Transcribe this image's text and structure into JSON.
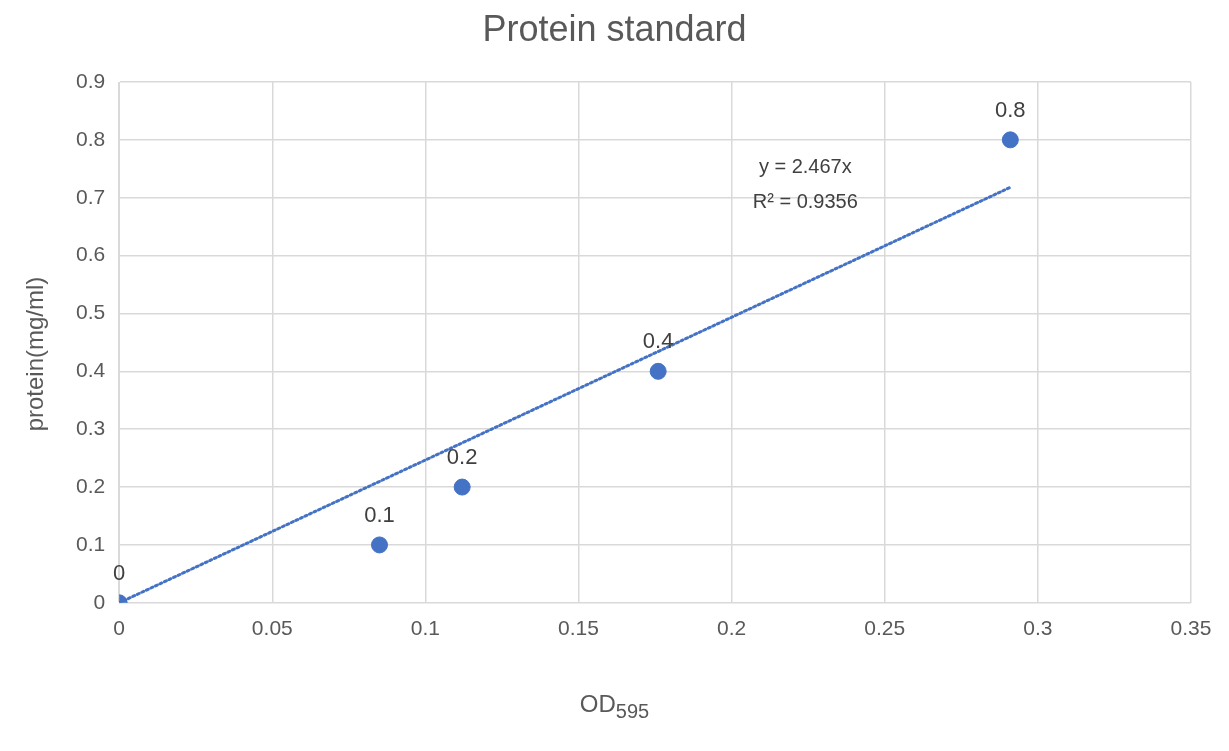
{
  "chart_data": {
    "type": "scatter",
    "title": "Protein standard",
    "xlabel": "OD$_{595}$",
    "ylabel": "protein(mg/ml)",
    "x": [
      0,
      0.085,
      0.112,
      0.176,
      0.291
    ],
    "series": [
      {
        "type": "scatter",
        "color": "#4472c4",
        "values": [
          0,
          0.1,
          0.2,
          0.4,
          0.8
        ],
        "value_labels": [
          "0",
          "0.1",
          "0.2",
          "0.4",
          "0.8"
        ],
        "marker": "circle"
      },
      {
        "type": "line",
        "color": "#4472c4",
        "x": [
          0,
          0.291
        ],
        "values": [
          0,
          0.718
        ],
        "line_style": "dotted",
        "marker": "none"
      }
    ],
    "annotations": [
      "y = 2.467x",
      "R² = 0.9356"
    ],
    "xlim": [
      0,
      0.35
    ],
    "xticks": [
      0,
      0.05,
      0.1,
      0.15,
      0.2,
      0.25,
      0.3,
      0.35
    ],
    "ylim": [
      0,
      0.9
    ],
    "yticks": [
      0,
      0.1,
      0.2,
      0.3,
      0.4,
      0.5,
      0.6,
      0.7,
      0.8,
      0.9
    ],
    "grid": true
  }
}
